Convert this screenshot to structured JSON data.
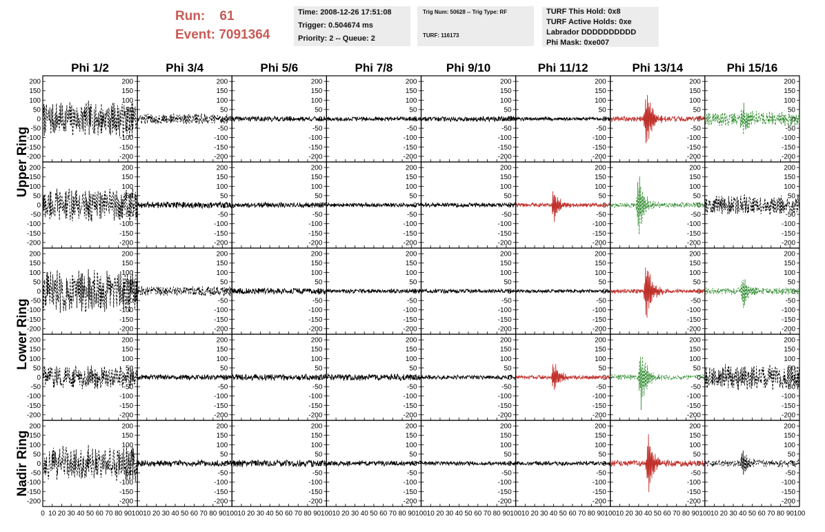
{
  "header": {
    "run_label": "Run:",
    "run_value": "61",
    "event_label": "Event:",
    "event_value": "7091364"
  },
  "info_box_1": {
    "time": "Time: 2008-12-26 17:51:08",
    "trigger": "Trigger: 0.504674 ms",
    "priority": "Priority: 2 -- Queue: 2"
  },
  "info_box_2": {
    "trig": "Trig Num: 50628 -- Trig Type: RF",
    "turf": "TURF: 116173"
  },
  "info_box_3": {
    "hold": "TURF This Hold: 0x8",
    "active": "TURF Active Holds: 0xe",
    "labrador": "Labrador DDDDDDDDDD",
    "phi_mask": "Phi Mask: 0xe007"
  },
  "chart_data": {
    "type": "line",
    "column_titles": [
      "Phi 1/2",
      "Phi 3/4",
      "Phi 5/6",
      "Phi 7/8",
      "Phi 9/10",
      "Phi 11/12",
      "Phi 13/14",
      "Phi 15/16"
    ],
    "row_titles": [
      "Upper Ring",
      "Lower Ring",
      "Nadir Ring"
    ],
    "ylim": [
      -230,
      230
    ],
    "xlim": [
      0,
      100
    ],
    "y_ticks": [
      "200",
      "150",
      "100",
      "50",
      "0",
      "-50",
      "-100",
      "-150",
      "-200"
    ],
    "x_ticks_first": [
      "0",
      "10",
      "20",
      "30",
      "40",
      "50",
      "60",
      "70",
      "80",
      "90",
      "100"
    ],
    "x_ticks_rest": [
      "10",
      "20",
      "30",
      "40",
      "50",
      "60",
      "70",
      "80",
      "90",
      "100"
    ],
    "colors": {
      "black": "#000000",
      "red": "#c0312c",
      "green": "#2e8b2e"
    },
    "waveforms": [
      [
        {
          "style": "dash",
          "color": "black",
          "amp": 100,
          "burst": null
        },
        {
          "style": "dash",
          "color": "black",
          "amp": 30,
          "burst": null
        },
        {
          "style": "solid",
          "color": "black",
          "amp": 15,
          "burst": null
        },
        {
          "style": "solid",
          "color": "black",
          "amp": 12,
          "burst": null
        },
        {
          "style": "solid",
          "color": "black",
          "amp": 15,
          "burst": null
        },
        {
          "style": "solid",
          "color": "black",
          "amp": 10,
          "burst": null
        },
        {
          "style": "solid",
          "color": "red",
          "amp": 15,
          "burst": {
            "center": 38,
            "amp": 190
          }
        },
        {
          "style": "dash",
          "color": "green",
          "amp": 40,
          "burst": {
            "center": 40,
            "amp": 100
          }
        }
      ],
      [
        {
          "style": "dash",
          "color": "black",
          "amp": 95,
          "burst": null
        },
        {
          "style": "solid",
          "color": "black",
          "amp": 18,
          "burst": null
        },
        {
          "style": "solid",
          "color": "black",
          "amp": 15,
          "burst": null
        },
        {
          "style": "solid",
          "color": "black",
          "amp": 12,
          "burst": null
        },
        {
          "style": "solid",
          "color": "black",
          "amp": 12,
          "burst": null
        },
        {
          "style": "solid",
          "color": "red",
          "amp": 12,
          "burst": {
            "center": 40,
            "amp": 100
          }
        },
        {
          "style": "dash",
          "color": "green",
          "amp": 15,
          "burst": {
            "center": 30,
            "amp": 190
          }
        },
        {
          "style": "dash",
          "color": "black",
          "amp": 60,
          "burst": null
        }
      ],
      [
        {
          "style": "dash",
          "color": "black",
          "amp": 120,
          "burst": null
        },
        {
          "style": "dash",
          "color": "black",
          "amp": 28,
          "burst": null
        },
        {
          "style": "solid",
          "color": "black",
          "amp": 18,
          "burst": null
        },
        {
          "style": "solid",
          "color": "black",
          "amp": 12,
          "burst": null
        },
        {
          "style": "solid",
          "color": "black",
          "amp": 12,
          "burst": null
        },
        {
          "style": "solid",
          "color": "black",
          "amp": 10,
          "burst": null
        },
        {
          "style": "solid",
          "color": "red",
          "amp": 12,
          "burst": {
            "center": 38,
            "amp": 200
          }
        },
        {
          "style": "dash",
          "color": "green",
          "amp": 20,
          "burst": {
            "center": 40,
            "amp": 110
          }
        }
      ],
      [
        {
          "style": "dash",
          "color": "black",
          "amp": 65,
          "burst": null
        },
        {
          "style": "solid",
          "color": "black",
          "amp": 15,
          "burst": null
        },
        {
          "style": "solid",
          "color": "black",
          "amp": 18,
          "burst": null
        },
        {
          "style": "solid",
          "color": "black",
          "amp": 18,
          "burst": null
        },
        {
          "style": "solid",
          "color": "black",
          "amp": 12,
          "burst": null
        },
        {
          "style": "solid",
          "color": "red",
          "amp": 12,
          "burst": {
            "center": 40,
            "amp": 100
          }
        },
        {
          "style": "dash",
          "color": "green",
          "amp": 15,
          "burst": {
            "center": 32,
            "amp": 190
          }
        },
        {
          "style": "dash",
          "color": "black",
          "amp": 70,
          "burst": null
        }
      ],
      [
        {
          "style": "dash",
          "color": "black",
          "amp": 100,
          "burst": null
        },
        {
          "style": "solid",
          "color": "black",
          "amp": 18,
          "burst": null
        },
        {
          "style": "solid",
          "color": "black",
          "amp": 20,
          "burst": null
        },
        {
          "style": "solid",
          "color": "black",
          "amp": 15,
          "burst": null
        },
        {
          "style": "solid",
          "color": "black",
          "amp": 12,
          "burst": null
        },
        {
          "style": "solid",
          "color": "black",
          "amp": 12,
          "burst": null
        },
        {
          "style": "solid",
          "color": "red",
          "amp": 18,
          "burst": {
            "center": 40,
            "amp": 190
          }
        },
        {
          "style": "dash",
          "color": "black",
          "amp": 20,
          "burst": {
            "center": 40,
            "amp": 80
          }
        }
      ]
    ]
  }
}
